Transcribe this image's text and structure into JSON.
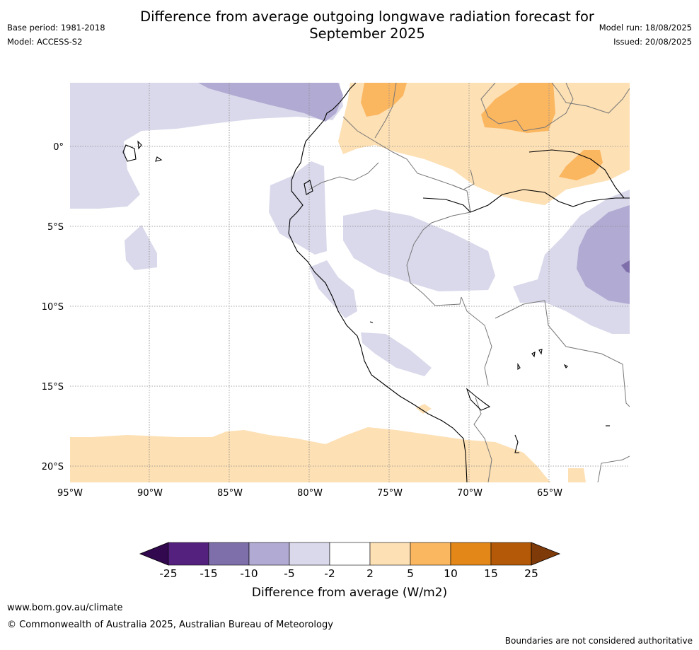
{
  "header": {
    "title_line1": "Difference from average outgoing longwave radiation forecast for",
    "title_line2": "September 2025",
    "base_period": "Base period: 1981-2018",
    "model": "Model: ACCESS-S2",
    "model_run": "Model run: 18/08/2025",
    "issued": "Issued: 20/08/2025"
  },
  "map": {
    "lon_labels": [
      "95°W",
      "90°W",
      "85°W",
      "80°W",
      "75°W",
      "70°W",
      "65°W"
    ],
    "lat_labels": [
      "0°",
      "5°S",
      "10°S",
      "15°S",
      "20°S"
    ]
  },
  "colorbar": {
    "label": "Difference from average (W/m2)",
    "ticks": [
      "-25",
      "-15",
      "-10",
      "-5",
      "-2",
      "2",
      "5",
      "10",
      "15",
      "25"
    ],
    "colors": [
      "#32094f",
      "#54217f",
      "#7e6faa",
      "#b1aad2",
      "#d9d9eb",
      "#ffffff",
      "#fde0b4",
      "#fbb660",
      "#e28718",
      "#b35907",
      "#7f3a09"
    ]
  },
  "footer": {
    "website": "www.bom.gov.au/climate",
    "copyright": "© Commonwealth of Australia 2025, Australian Bureau of Meteorology",
    "disclaimer": "Boundaries are not considered authoritative"
  }
}
